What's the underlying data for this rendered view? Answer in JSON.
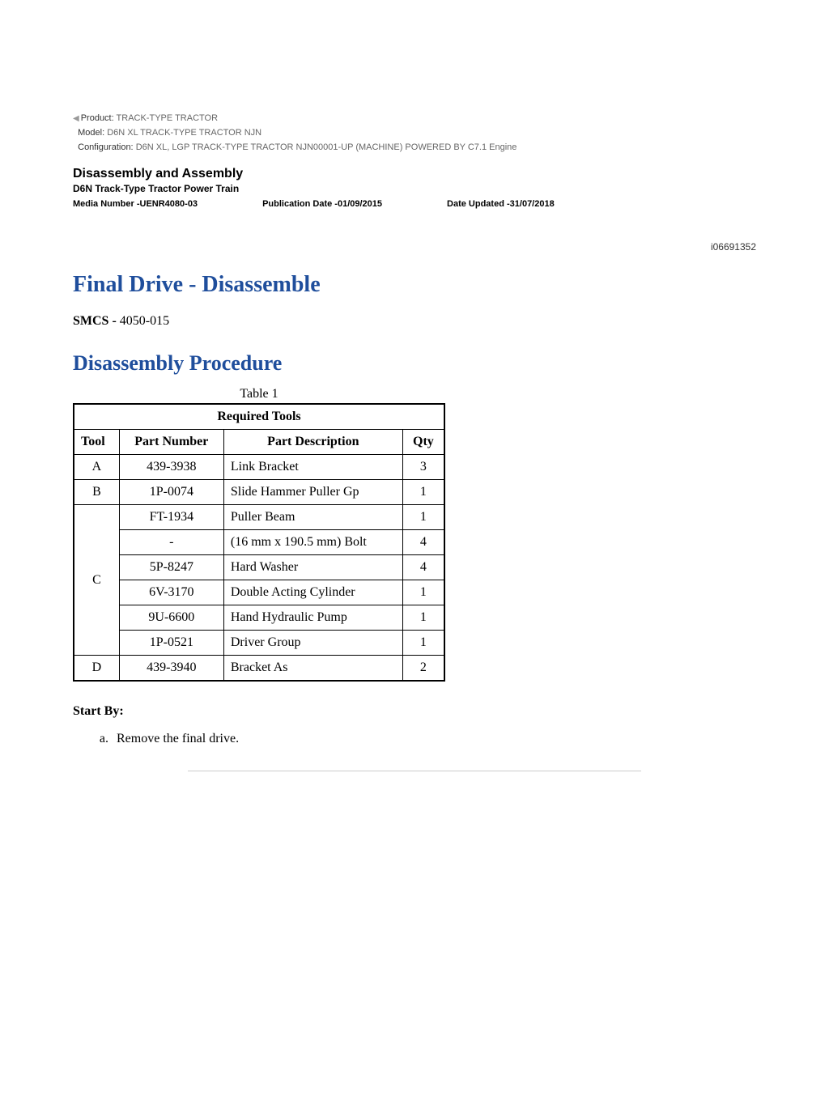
{
  "meta": {
    "product_label": "Product:",
    "product_value": "TRACK-TYPE TRACTOR",
    "model_label": "Model:",
    "model_value": "D6N XL TRACK-TYPE TRACTOR NJN",
    "config_label": "Configuration:",
    "config_value": "D6N XL, LGP TRACK-TYPE TRACTOR NJN00001-UP (MACHINE) POWERED BY C7.1 Engine"
  },
  "doc_header": {
    "section_title": "Disassembly and Assembly",
    "subtitle": "D6N Track-Type Tractor Power Train",
    "media_number_label": "Media Number -",
    "media_number": "UENR4080-03",
    "pub_date_label": "Publication Date -",
    "pub_date": "01/09/2015",
    "date_updated_label": "Date Updated -",
    "date_updated": "31/07/2018"
  },
  "article_id": "i06691352",
  "h1": "Final Drive - Disassemble",
  "smcs_label": "SMCS -",
  "smcs_value": "4050-015",
  "h2": "Disassembly Procedure",
  "table": {
    "caption": "Table 1",
    "title": "Required Tools",
    "columns": [
      "Tool",
      "Part Number",
      "Part Description",
      "Qty"
    ],
    "rows": [
      {
        "tool": "A",
        "pn": "439-3938",
        "desc": "Link Bracket",
        "qty": "3"
      },
      {
        "tool": "B",
        "pn": "1P-0074",
        "desc": "Slide Hammer Puller Gp",
        "qty": "1"
      },
      {
        "tool": "C",
        "pn": "FT-1934",
        "desc": "Puller Beam",
        "qty": "1"
      },
      {
        "tool": "",
        "pn": "-",
        "desc": "(16 mm x 190.5 mm) Bolt",
        "qty": "4"
      },
      {
        "tool": "",
        "pn": "5P-8247",
        "desc": "Hard Washer",
        "qty": "4"
      },
      {
        "tool": "",
        "pn": "6V-3170",
        "desc": "Double Acting Cylinder",
        "qty": "1"
      },
      {
        "tool": "",
        "pn": "9U-6600",
        "desc": "Hand Hydraulic Pump",
        "qty": "1"
      },
      {
        "tool": "",
        "pn": "1P-0521",
        "desc": "Driver Group",
        "qty": "1"
      },
      {
        "tool": "D",
        "pn": "439-3940",
        "desc": "Bracket As",
        "qty": "2"
      }
    ]
  },
  "start_by_label": "Start By:",
  "start_by_items": [
    "Remove the final drive."
  ],
  "colors": {
    "heading_blue": "#1f4e9c",
    "text_black": "#000000",
    "meta_grey": "#666666",
    "rule_grey": "#cccccc",
    "background": "#ffffff"
  }
}
